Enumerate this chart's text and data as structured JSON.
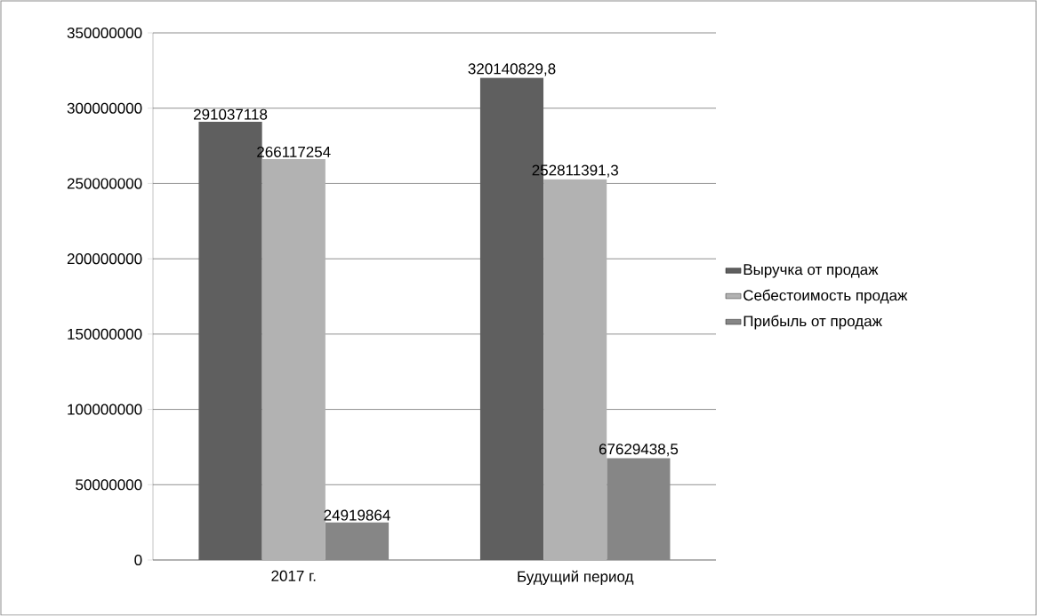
{
  "chart_data": {
    "type": "bar",
    "categories": [
      "2017 г.",
      "Будущий период"
    ],
    "series": [
      {
        "name": "Выручка от продаж",
        "color": "#5f5f5f",
        "values": [
          291037118,
          320140829.8
        ],
        "value_labels": [
          "291037118",
          "320140829,8"
        ]
      },
      {
        "name": "Себестоимость продаж",
        "color": "#b2b2b2",
        "values": [
          266117254,
          252811391.3
        ],
        "value_labels": [
          "266117254",
          "252811391,3"
        ]
      },
      {
        "name": "Прибыль от продаж",
        "color": "#868686",
        "values": [
          24919864,
          67629438.5
        ],
        "value_labels": [
          "24919864",
          "67629438,5"
        ]
      }
    ],
    "ylim": [
      0,
      350000000
    ],
    "yticks": [
      0,
      50000000,
      100000000,
      150000000,
      200000000,
      250000000,
      300000000,
      350000000
    ],
    "grid": "y",
    "legend": "right"
  }
}
